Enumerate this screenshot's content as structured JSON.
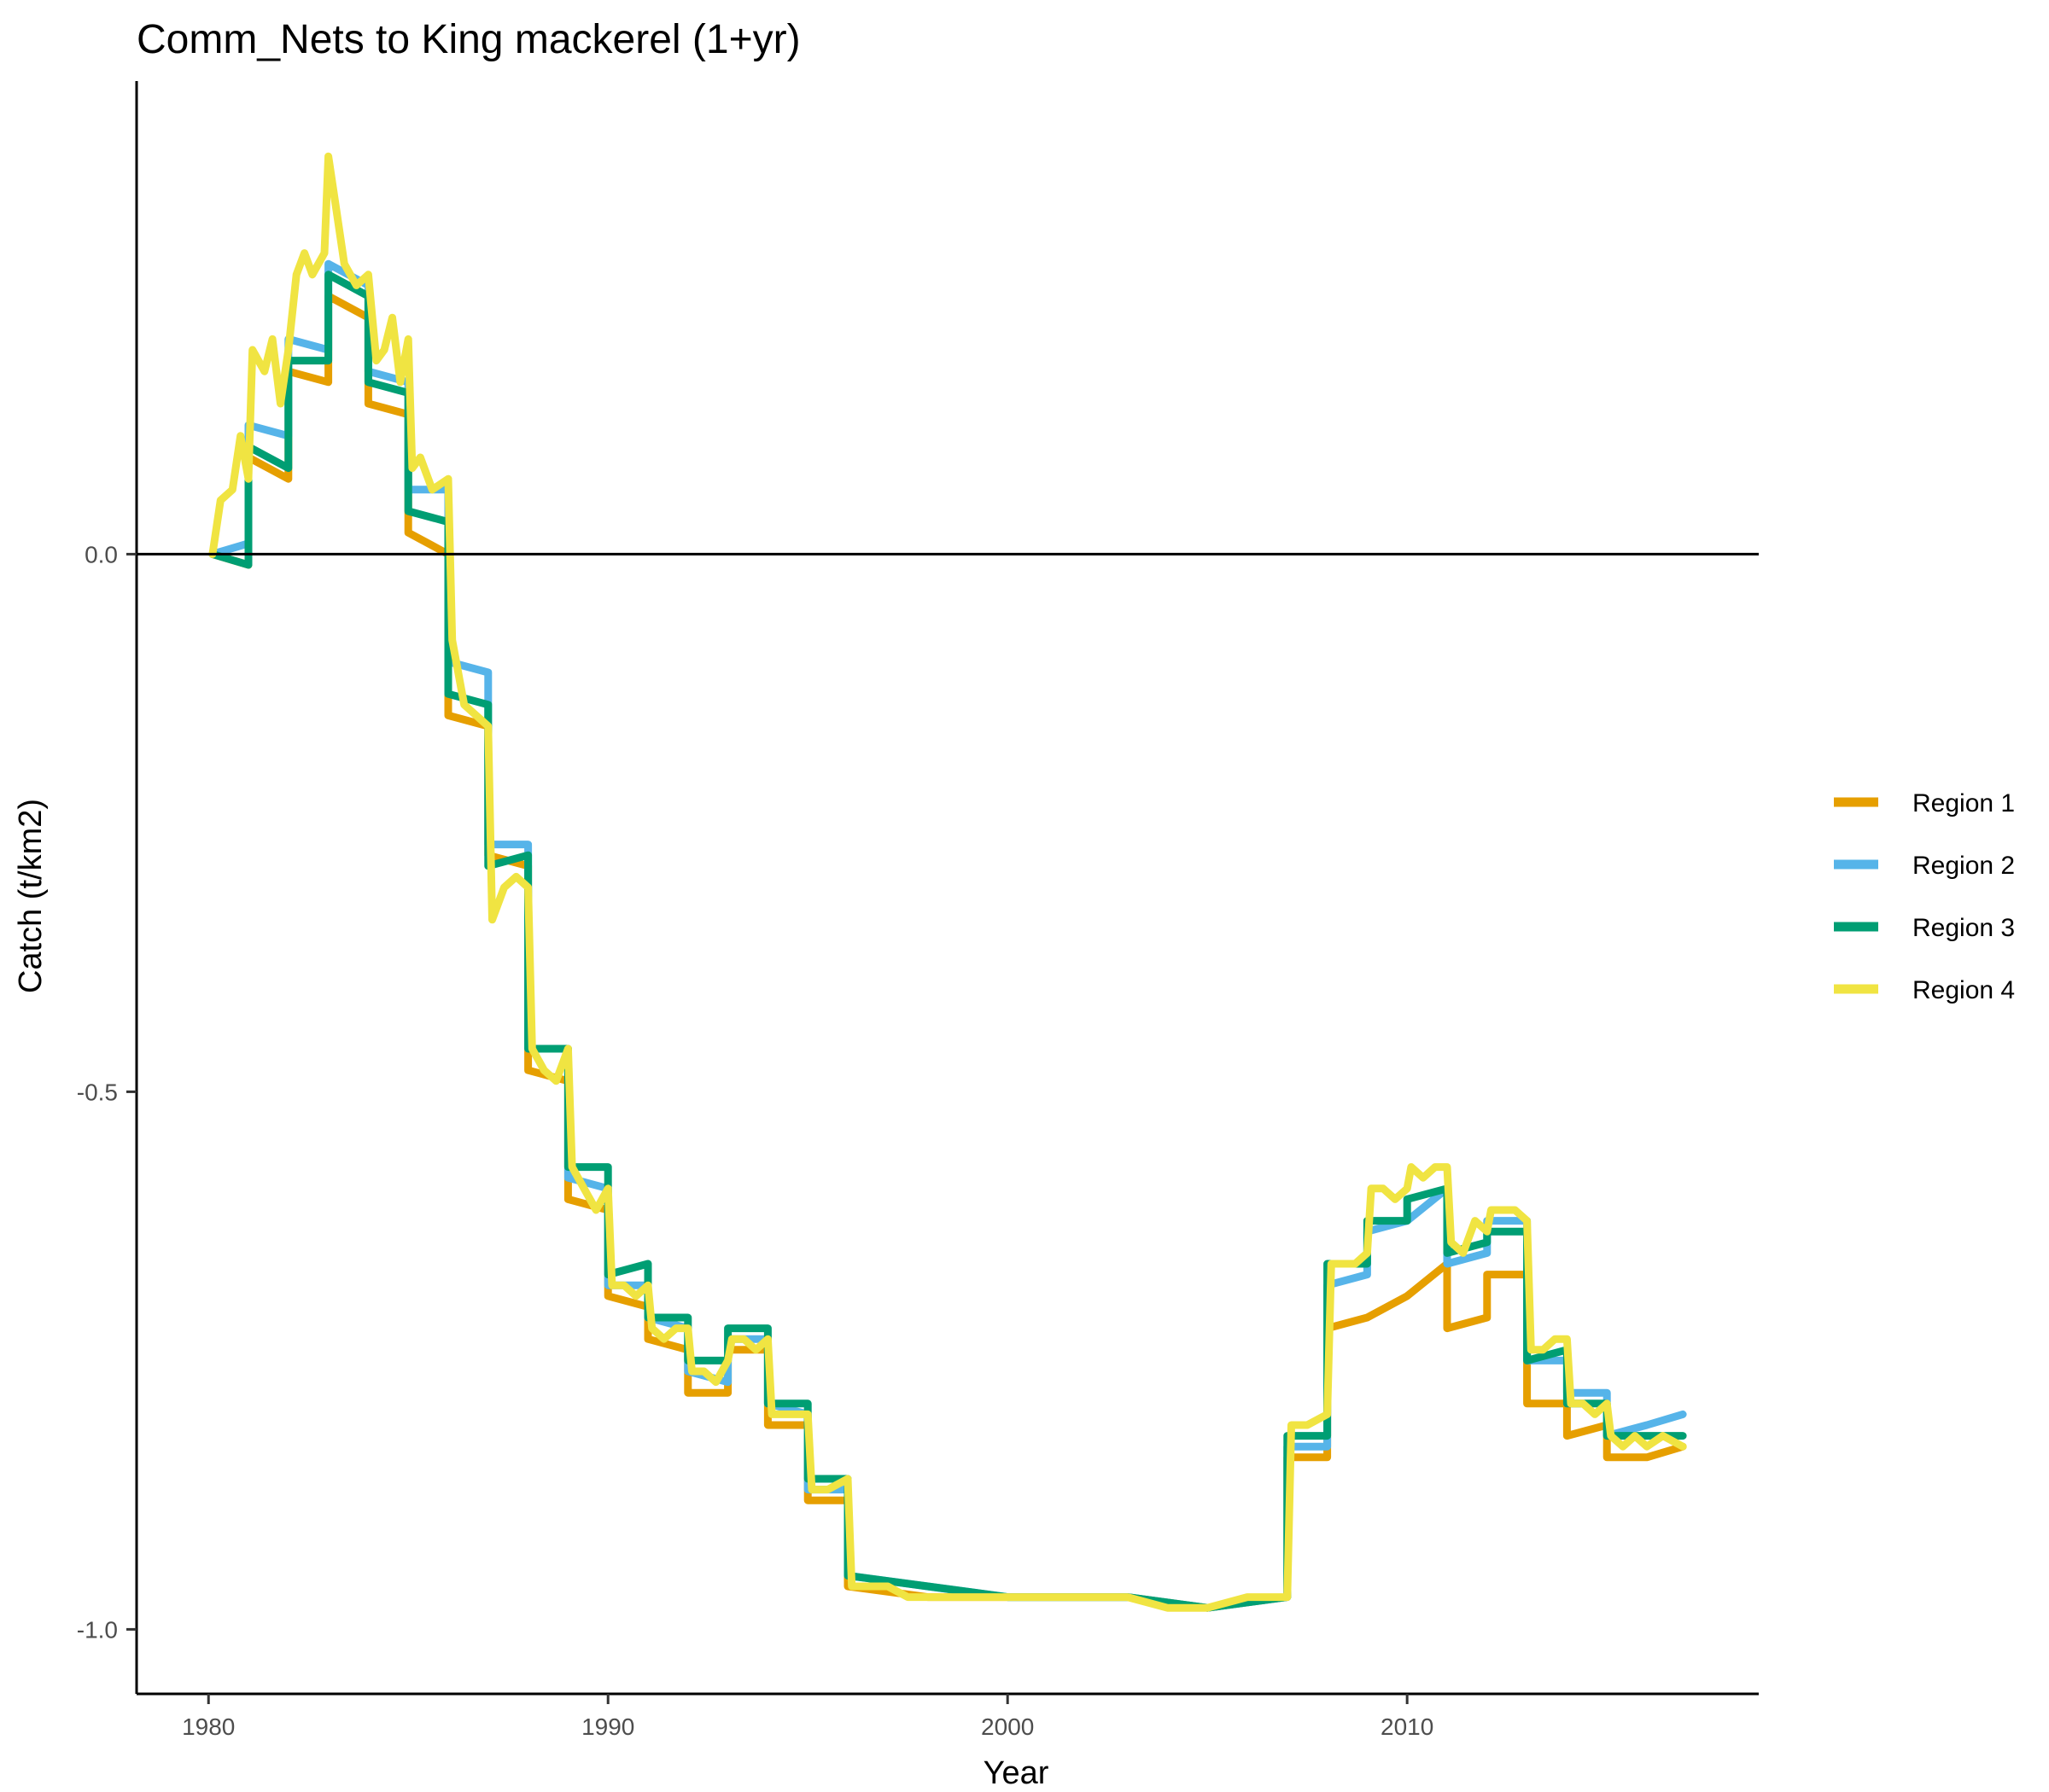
{
  "chart_data": {
    "type": "line",
    "title": "Comm_Nets to King mackerel (1+yr)",
    "xlabel": "Year",
    "ylabel": "Catch (t/km2)",
    "xlim": [
      1978.2,
      2018.8
    ],
    "ylim": [
      -1.06,
      0.44
    ],
    "x_ticks": [
      1980,
      1990,
      2000,
      2010
    ],
    "x_tick_labels": [
      "1980",
      "1990",
      "2000",
      "2010"
    ],
    "y_ticks": [
      0.0,
      -0.5,
      -1.0
    ],
    "y_tick_labels": [
      "0.0",
      "-0.5",
      "-1.0"
    ],
    "reference_line": 0,
    "grid": false,
    "legend_position": "right",
    "series": [
      {
        "name": "Region 1",
        "color": "#E69F00",
        "points": [
          [
            1980.1,
            0.0
          ],
          [
            1981.0,
            -0.01
          ],
          [
            1981.0,
            0.09
          ],
          [
            1982.0,
            0.07
          ],
          [
            1982.0,
            0.17
          ],
          [
            1983.0,
            0.16
          ],
          [
            1983.0,
            0.24
          ],
          [
            1984.0,
            0.22
          ],
          [
            1984.0,
            0.14
          ],
          [
            1985.0,
            0.13
          ],
          [
            1985.0,
            0.02
          ],
          [
            1986.0,
            0.0
          ],
          [
            1986.0,
            -0.15
          ],
          [
            1987.0,
            -0.16
          ],
          [
            1987.0,
            -0.28
          ],
          [
            1988.0,
            -0.29
          ],
          [
            1988.0,
            -0.48
          ],
          [
            1989.0,
            -0.49
          ],
          [
            1989.0,
            -0.6
          ],
          [
            1990.0,
            -0.61
          ],
          [
            1990.0,
            -0.69
          ],
          [
            1991.0,
            -0.7
          ],
          [
            1991.0,
            -0.73
          ],
          [
            1992.0,
            -0.74
          ],
          [
            1992.0,
            -0.78
          ],
          [
            1993.0,
            -0.78
          ],
          [
            1993.0,
            -0.74
          ],
          [
            1994.0,
            -0.74
          ],
          [
            1994.0,
            -0.81
          ],
          [
            1995.0,
            -0.81
          ],
          [
            1995.0,
            -0.88
          ],
          [
            1996.0,
            -0.88
          ],
          [
            1996.0,
            -0.96
          ],
          [
            1998.0,
            -0.97
          ],
          [
            2000.0,
            -0.97
          ],
          [
            2003.0,
            -0.97
          ],
          [
            2005.0,
            -0.98
          ],
          [
            2007.0,
            -0.97
          ],
          [
            2007.0,
            -0.84
          ],
          [
            2008.0,
            -0.84
          ],
          [
            2008.0,
            -0.72
          ],
          [
            2009.0,
            -0.71
          ],
          [
            2010.0,
            -0.69
          ],
          [
            2011.0,
            -0.66
          ],
          [
            2011.0,
            -0.72
          ],
          [
            2012.0,
            -0.71
          ],
          [
            2012.0,
            -0.67
          ],
          [
            2013.0,
            -0.67
          ],
          [
            2013.0,
            -0.79
          ],
          [
            2014.0,
            -0.79
          ],
          [
            2014.0,
            -0.82
          ],
          [
            2015.0,
            -0.81
          ],
          [
            2015.0,
            -0.84
          ],
          [
            2016.0,
            -0.84
          ],
          [
            2016.9,
            -0.83
          ]
        ]
      },
      {
        "name": "Region 2",
        "color": "#56B4E9",
        "points": [
          [
            1980.1,
            0.0
          ],
          [
            1981.0,
            0.01
          ],
          [
            1981.0,
            0.12
          ],
          [
            1982.0,
            0.11
          ],
          [
            1982.0,
            0.2
          ],
          [
            1983.0,
            0.19
          ],
          [
            1983.0,
            0.27
          ],
          [
            1984.0,
            0.25
          ],
          [
            1984.0,
            0.17
          ],
          [
            1985.0,
            0.16
          ],
          [
            1985.0,
            0.06
          ],
          [
            1986.0,
            0.06
          ],
          [
            1986.0,
            -0.1
          ],
          [
            1987.0,
            -0.11
          ],
          [
            1987.0,
            -0.27
          ],
          [
            1988.0,
            -0.27
          ],
          [
            1988.0,
            -0.46
          ],
          [
            1989.0,
            -0.46
          ],
          [
            1989.0,
            -0.58
          ],
          [
            1990.0,
            -0.59
          ],
          [
            1990.0,
            -0.68
          ],
          [
            1991.0,
            -0.68
          ],
          [
            1991.0,
            -0.71
          ],
          [
            1992.0,
            -0.72
          ],
          [
            1992.0,
            -0.76
          ],
          [
            1993.0,
            -0.77
          ],
          [
            1993.0,
            -0.73
          ],
          [
            1994.0,
            -0.73
          ],
          [
            1994.0,
            -0.79
          ],
          [
            1995.0,
            -0.8
          ],
          [
            1995.0,
            -0.87
          ],
          [
            1996.0,
            -0.87
          ],
          [
            1996.0,
            -0.95
          ],
          [
            1998.0,
            -0.96
          ],
          [
            2000.0,
            -0.97
          ],
          [
            2003.0,
            -0.97
          ],
          [
            2005.0,
            -0.98
          ],
          [
            2007.0,
            -0.97
          ],
          [
            2007.0,
            -0.83
          ],
          [
            2008.0,
            -0.83
          ],
          [
            2008.0,
            -0.68
          ],
          [
            2009.0,
            -0.67
          ],
          [
            2009.0,
            -0.63
          ],
          [
            2010.0,
            -0.62
          ],
          [
            2011.0,
            -0.59
          ],
          [
            2011.0,
            -0.66
          ],
          [
            2012.0,
            -0.65
          ],
          [
            2012.0,
            -0.62
          ],
          [
            2013.0,
            -0.62
          ],
          [
            2013.0,
            -0.75
          ],
          [
            2014.0,
            -0.75
          ],
          [
            2014.0,
            -0.78
          ],
          [
            2015.0,
            -0.78
          ],
          [
            2015.0,
            -0.82
          ],
          [
            2016.0,
            -0.81
          ],
          [
            2016.9,
            -0.8
          ]
        ]
      },
      {
        "name": "Region 3",
        "color": "#009E73",
        "points": [
          [
            1980.1,
            0.0
          ],
          [
            1981.0,
            -0.01
          ],
          [
            1981.0,
            0.1
          ],
          [
            1982.0,
            0.08
          ],
          [
            1982.0,
            0.18
          ],
          [
            1983.0,
            0.18
          ],
          [
            1983.0,
            0.26
          ],
          [
            1984.0,
            0.24
          ],
          [
            1984.0,
            0.16
          ],
          [
            1985.0,
            0.15
          ],
          [
            1985.0,
            0.04
          ],
          [
            1986.0,
            0.03
          ],
          [
            1986.0,
            -0.13
          ],
          [
            1987.0,
            -0.14
          ],
          [
            1987.0,
            -0.29
          ],
          [
            1988.0,
            -0.28
          ],
          [
            1988.0,
            -0.46
          ],
          [
            1989.0,
            -0.46
          ],
          [
            1989.0,
            -0.57
          ],
          [
            1990.0,
            -0.57
          ],
          [
            1990.0,
            -0.67
          ],
          [
            1991.0,
            -0.66
          ],
          [
            1991.0,
            -0.71
          ],
          [
            1992.0,
            -0.71
          ],
          [
            1992.0,
            -0.75
          ],
          [
            1993.0,
            -0.75
          ],
          [
            1993.0,
            -0.72
          ],
          [
            1994.0,
            -0.72
          ],
          [
            1994.0,
            -0.79
          ],
          [
            1995.0,
            -0.79
          ],
          [
            1995.0,
            -0.86
          ],
          [
            1996.0,
            -0.86
          ],
          [
            1996.0,
            -0.95
          ],
          [
            1998.0,
            -0.96
          ],
          [
            2000.0,
            -0.97
          ],
          [
            2003.0,
            -0.97
          ],
          [
            2005.0,
            -0.98
          ],
          [
            2007.0,
            -0.97
          ],
          [
            2007.0,
            -0.82
          ],
          [
            2008.0,
            -0.82
          ],
          [
            2008.0,
            -0.66
          ],
          [
            2009.0,
            -0.66
          ],
          [
            2009.0,
            -0.62
          ],
          [
            2010.0,
            -0.62
          ],
          [
            2010.0,
            -0.6
          ],
          [
            2011.0,
            -0.59
          ],
          [
            2011.0,
            -0.65
          ],
          [
            2012.0,
            -0.64
          ],
          [
            2012.0,
            -0.63
          ],
          [
            2013.0,
            -0.63
          ],
          [
            2013.0,
            -0.75
          ],
          [
            2014.0,
            -0.74
          ],
          [
            2014.0,
            -0.79
          ],
          [
            2015.0,
            -0.79
          ],
          [
            2015.0,
            -0.82
          ],
          [
            2016.0,
            -0.82
          ],
          [
            2016.9,
            -0.82
          ]
        ]
      },
      {
        "name": "Region 4",
        "color": "#F0E442",
        "points": [
          [
            1980.1,
            0.0
          ],
          [
            1980.3,
            0.05
          ],
          [
            1980.6,
            0.06
          ],
          [
            1980.8,
            0.11
          ],
          [
            1981.0,
            0.07
          ],
          [
            1981.1,
            0.19
          ],
          [
            1981.4,
            0.17
          ],
          [
            1981.6,
            0.2
          ],
          [
            1981.8,
            0.14
          ],
          [
            1982.0,
            0.19
          ],
          [
            1982.2,
            0.26
          ],
          [
            1982.4,
            0.28
          ],
          [
            1982.6,
            0.26
          ],
          [
            1982.9,
            0.28
          ],
          [
            1983.0,
            0.37
          ],
          [
            1983.2,
            0.32
          ],
          [
            1983.4,
            0.27
          ],
          [
            1983.7,
            0.25
          ],
          [
            1984.0,
            0.26
          ],
          [
            1984.2,
            0.18
          ],
          [
            1984.4,
            0.19
          ],
          [
            1984.6,
            0.22
          ],
          [
            1984.8,
            0.16
          ],
          [
            1985.0,
            0.2
          ],
          [
            1985.1,
            0.08
          ],
          [
            1985.3,
            0.09
          ],
          [
            1985.6,
            0.06
          ],
          [
            1986.0,
            0.07
          ],
          [
            1986.1,
            -0.08
          ],
          [
            1986.4,
            -0.14
          ],
          [
            1987.0,
            -0.16
          ],
          [
            1987.1,
            -0.34
          ],
          [
            1987.4,
            -0.31
          ],
          [
            1987.7,
            -0.3
          ],
          [
            1988.0,
            -0.31
          ],
          [
            1988.1,
            -0.46
          ],
          [
            1988.4,
            -0.48
          ],
          [
            1988.7,
            -0.49
          ],
          [
            1989.0,
            -0.46
          ],
          [
            1989.1,
            -0.57
          ],
          [
            1989.4,
            -0.59
          ],
          [
            1989.7,
            -0.61
          ],
          [
            1990.0,
            -0.59
          ],
          [
            1990.1,
            -0.68
          ],
          [
            1990.4,
            -0.68
          ],
          [
            1990.7,
            -0.69
          ],
          [
            1991.0,
            -0.68
          ],
          [
            1991.1,
            -0.72
          ],
          [
            1991.4,
            -0.73
          ],
          [
            1991.7,
            -0.72
          ],
          [
            1992.0,
            -0.72
          ],
          [
            1992.1,
            -0.76
          ],
          [
            1992.4,
            -0.76
          ],
          [
            1992.7,
            -0.77
          ],
          [
            1993.0,
            -0.75
          ],
          [
            1993.1,
            -0.73
          ],
          [
            1993.4,
            -0.73
          ],
          [
            1993.7,
            -0.74
          ],
          [
            1994.0,
            -0.73
          ],
          [
            1994.1,
            -0.8
          ],
          [
            1994.5,
            -0.8
          ],
          [
            1995.0,
            -0.8
          ],
          [
            1995.1,
            -0.87
          ],
          [
            1995.5,
            -0.87
          ],
          [
            1996.0,
            -0.86
          ],
          [
            1996.1,
            -0.96
          ],
          [
            1996.6,
            -0.96
          ],
          [
            1997.0,
            -0.96
          ],
          [
            1997.5,
            -0.97
          ],
          [
            1998.0,
            -0.97
          ],
          [
            1998.5,
            -0.97
          ],
          [
            1999.0,
            -0.97
          ],
          [
            1999.5,
            -0.97
          ],
          [
            2000.0,
            -0.97
          ],
          [
            2001.5,
            -0.97
          ],
          [
            2003.0,
            -0.97
          ],
          [
            2004.0,
            -0.98
          ],
          [
            2005.0,
            -0.98
          ],
          [
            2006.0,
            -0.97
          ],
          [
            2007.0,
            -0.97
          ],
          [
            2007.1,
            -0.81
          ],
          [
            2007.5,
            -0.81
          ],
          [
            2008.0,
            -0.8
          ],
          [
            2008.1,
            -0.66
          ],
          [
            2008.4,
            -0.66
          ],
          [
            2008.7,
            -0.66
          ],
          [
            2009.0,
            -0.65
          ],
          [
            2009.1,
            -0.59
          ],
          [
            2009.4,
            -0.59
          ],
          [
            2009.7,
            -0.6
          ],
          [
            2010.0,
            -0.59
          ],
          [
            2010.1,
            -0.57
          ],
          [
            2010.4,
            -0.58
          ],
          [
            2010.7,
            -0.57
          ],
          [
            2011.0,
            -0.57
          ],
          [
            2011.1,
            -0.64
          ],
          [
            2011.4,
            -0.65
          ],
          [
            2011.7,
            -0.62
          ],
          [
            2012.0,
            -0.63
          ],
          [
            2012.1,
            -0.61
          ],
          [
            2012.4,
            -0.61
          ],
          [
            2012.7,
            -0.61
          ],
          [
            2013.0,
            -0.62
          ],
          [
            2013.1,
            -0.74
          ],
          [
            2013.4,
            -0.74
          ],
          [
            2013.7,
            -0.73
          ],
          [
            2014.0,
            -0.73
          ],
          [
            2014.1,
            -0.79
          ],
          [
            2014.4,
            -0.79
          ],
          [
            2014.7,
            -0.8
          ],
          [
            2015.0,
            -0.79
          ],
          [
            2015.1,
            -0.82
          ],
          [
            2015.4,
            -0.83
          ],
          [
            2015.7,
            -0.82
          ],
          [
            2016.0,
            -0.83
          ],
          [
            2016.4,
            -0.82
          ],
          [
            2016.9,
            -0.83
          ]
        ]
      }
    ]
  }
}
